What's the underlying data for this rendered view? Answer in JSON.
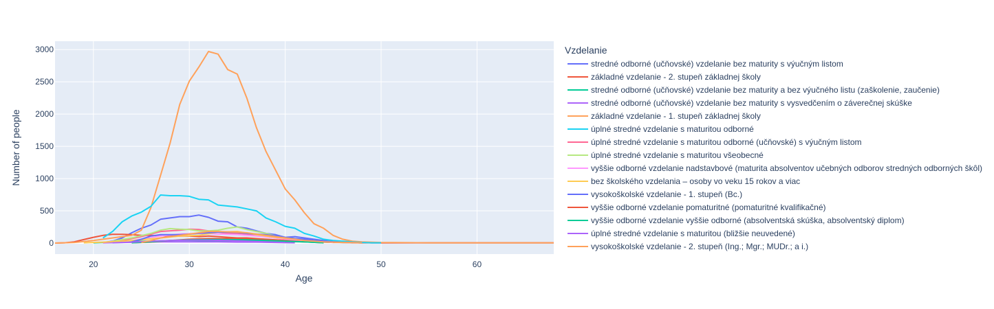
{
  "chart_data": {
    "type": "line",
    "title": "",
    "xlabel": "Age",
    "ylabel": "Number of people",
    "xlim": [
      16,
      68
    ],
    "ylim": [
      -170,
      3130
    ],
    "x_ticks": [
      20,
      30,
      40,
      50,
      60
    ],
    "y_ticks": [
      0,
      500,
      1000,
      1500,
      2000,
      2500,
      3000
    ],
    "grid": true,
    "legend_title": "Vzdelanie",
    "legend_position": "right",
    "series": [
      {
        "name": "stredné odborné (učňovské) vzdelanie bez maturity s výučným listom",
        "color": "#636efa",
        "x": [
          21,
          22,
          23,
          24,
          25,
          26,
          27,
          28,
          29,
          30,
          31,
          32,
          33,
          34,
          35,
          36,
          37,
          38,
          39,
          40,
          41,
          42,
          43,
          44,
          45,
          46,
          47,
          48,
          49,
          50,
          55,
          60,
          65,
          68
        ],
        "y": [
          10,
          30,
          80,
          160,
          230,
          280,
          370,
          390,
          410,
          410,
          435,
          400,
          340,
          330,
          250,
          230,
          190,
          150,
          130,
          90,
          100,
          80,
          60,
          40,
          30,
          20,
          15,
          10,
          5,
          5,
          5,
          5,
          5,
          5
        ]
      },
      {
        "name": "základné vzdelanie - 2. stupeň základnej školy",
        "color": "#EF553B",
        "x": [
          16,
          17,
          18,
          19,
          20,
          21,
          22,
          23,
          24,
          25,
          26,
          27,
          28,
          29,
          30,
          31,
          32,
          33,
          34,
          35,
          36,
          37,
          38,
          39,
          40,
          41,
          42,
          43,
          44,
          45,
          46,
          47,
          48,
          49,
          50,
          55,
          60,
          65,
          68
        ],
        "y": [
          0,
          5,
          20,
          55,
          90,
          120,
          135,
          135,
          130,
          120,
          120,
          115,
          110,
          110,
          110,
          100,
          110,
          100,
          90,
          80,
          80,
          70,
          60,
          50,
          40,
          35,
          30,
          20,
          15,
          10,
          10,
          5,
          5,
          5,
          5,
          5,
          5,
          5,
          5
        ]
      },
      {
        "name": "stredné odborné (učňovské) vzdelanie bez maturity a bez výučného listu (zaškolenie, zaučenie)",
        "color": "#00cc96",
        "x": [
          20,
          22,
          24,
          26,
          28,
          30,
          32,
          34,
          36,
          38,
          40,
          42,
          44,
          46,
          48
        ],
        "y": [
          5,
          15,
          25,
          30,
          40,
          40,
          35,
          35,
          35,
          30,
          25,
          20,
          15,
          10,
          5
        ]
      },
      {
        "name": "stredné odborné (učňovské) vzdelanie bez maturity s vysvedčením o záverečnej skúške",
        "color": "#ab63fa",
        "x": [
          21,
          23,
          25,
          27,
          29,
          31,
          33,
          35,
          37,
          39,
          41
        ],
        "y": [
          5,
          10,
          15,
          20,
          20,
          20,
          20,
          15,
          15,
          10,
          5
        ]
      },
      {
        "name": "základné vzdelanie - 1. stupeň základnej školy",
        "color": "#FFA15A",
        "x": [
          16,
          18,
          20,
          22,
          24,
          25,
          26,
          27,
          28,
          29,
          30,
          31,
          32,
          33,
          34,
          35,
          36,
          37,
          38,
          39,
          40,
          41,
          42,
          43,
          44,
          45,
          46,
          47,
          48,
          50,
          55,
          60,
          65,
          68
        ],
        "y": [
          0,
          10,
          40,
          80,
          120,
          200,
          550,
          1050,
          1550,
          2150,
          2510,
          2730,
          2970,
          2930,
          2690,
          2620,
          2250,
          1790,
          1420,
          1130,
          840,
          670,
          470,
          300,
          230,
          120,
          60,
          30,
          20,
          10,
          5,
          5,
          5,
          5
        ]
      },
      {
        "name": "úplné stredné vzdelanie s maturitou odborné",
        "color": "#19d3f3",
        "x": [
          21,
          22,
          23,
          24,
          25,
          26,
          27,
          28,
          29,
          30,
          31,
          32,
          33,
          34,
          35,
          36,
          37,
          38,
          39,
          40,
          41,
          42,
          43,
          44,
          45,
          46,
          47,
          48,
          49,
          50
        ],
        "y": [
          80,
          180,
          330,
          420,
          480,
          570,
          745,
          735,
          735,
          725,
          680,
          670,
          590,
          575,
          560,
          530,
          500,
          390,
          330,
          260,
          230,
          150,
          110,
          60,
          40,
          30,
          20,
          10,
          5,
          5
        ]
      },
      {
        "name": "úplné stredné vzdelanie s maturitou odborné (učňovské) s výučným listom",
        "color": "#FF6692",
        "x": [
          21,
          23,
          25,
          27,
          29,
          30,
          31,
          32,
          33,
          34,
          35,
          36,
          37,
          38,
          39,
          40,
          41,
          42,
          44,
          46,
          48
        ],
        "y": [
          10,
          40,
          100,
          180,
          200,
          215,
          210,
          190,
          170,
          150,
          150,
          140,
          120,
          100,
          80,
          60,
          50,
          40,
          20,
          10,
          5
        ]
      },
      {
        "name": "úplné stredné vzdelanie s maturitou všeobecné",
        "color": "#B6E880",
        "x": [
          22,
          24,
          26,
          27,
          28,
          29,
          30,
          31,
          32,
          33,
          34,
          35,
          36,
          37,
          38,
          39,
          40,
          41,
          42,
          44,
          46,
          48
        ],
        "y": [
          30,
          80,
          150,
          200,
          225,
          215,
          210,
          190,
          190,
          200,
          230,
          250,
          210,
          180,
          150,
          110,
          90,
          70,
          50,
          25,
          10,
          5
        ]
      },
      {
        "name": "vyššie odborné vzdelanie nadstavbové (maturita absolventov učebných odborov stredných odborných škôl)",
        "color": "#FF97FF",
        "x": [
          23,
          25,
          27,
          29,
          31,
          33,
          35,
          37,
          39,
          41,
          43,
          45
        ],
        "y": [
          20,
          60,
          110,
          140,
          150,
          140,
          130,
          110,
          80,
          50,
          30,
          10
        ]
      },
      {
        "name": "bez školského vzdelania – osoby vo veku 15 rokov a viac",
        "color": "#FECB52",
        "x": [
          19,
          21,
          23,
          25,
          27,
          29,
          31,
          33,
          35,
          37,
          39,
          41,
          43,
          45,
          47
        ],
        "y": [
          5,
          15,
          30,
          50,
          80,
          110,
          120,
          170,
          180,
          130,
          90,
          60,
          40,
          20,
          5
        ]
      },
      {
        "name": "vysokoškolské vzdelanie - 1. stupeň (Bc.)",
        "color": "#636efa",
        "x": [
          24,
          25,
          26,
          27,
          28,
          29,
          30,
          31,
          32,
          33,
          34,
          35,
          36,
          37,
          38,
          39,
          40,
          41,
          42,
          43,
          44,
          46,
          48
        ],
        "y": [
          20,
          60,
          110,
          130,
          130,
          130,
          140,
          150,
          160,
          170,
          170,
          165,
          150,
          140,
          130,
          110,
          90,
          70,
          60,
          40,
          30,
          10,
          5
        ]
      },
      {
        "name": "vyššie odborné vzdelanie pomaturitné (pomaturitné kvalifikačné)",
        "color": "#EF553B",
        "x": [
          24,
          26,
          28,
          30,
          32,
          34,
          36,
          38,
          40,
          42,
          44
        ],
        "y": [
          5,
          15,
          40,
          60,
          70,
          70,
          60,
          50,
          30,
          20,
          5
        ]
      },
      {
        "name": "vyššie odborné vzdelanie vyššie odborné (absolventská skúška, absolventský diplom)",
        "color": "#00cc96",
        "x": [
          24,
          26,
          28,
          30,
          32,
          34,
          36,
          38,
          40,
          42,
          44
        ],
        "y": [
          5,
          20,
          40,
          50,
          55,
          55,
          50,
          40,
          30,
          20,
          5
        ]
      },
      {
        "name": "úplné stredné vzdelanie s maturitou (bližšie neuvedené)",
        "color": "#ab63fa",
        "x": [
          22,
          24,
          26,
          28,
          30,
          32,
          34,
          36,
          38,
          40
        ],
        "y": [
          5,
          15,
          30,
          40,
          45,
          45,
          40,
          30,
          20,
          10
        ]
      },
      {
        "name": "vysokoškolské vzdelanie - 2. stupeň (Ing.; Mgr.; MUDr.; a i.)",
        "color": "#FFA15A",
        "x": [
          25,
          26,
          27,
          28,
          29,
          30,
          31,
          32,
          33,
          34,
          35,
          36,
          37,
          38,
          39,
          40,
          41,
          42,
          44,
          46,
          48
        ],
        "y": [
          10,
          40,
          80,
          100,
          120,
          140,
          160,
          180,
          180,
          175,
          170,
          160,
          140,
          120,
          100,
          80,
          60,
          40,
          20,
          10,
          5
        ]
      }
    ]
  }
}
